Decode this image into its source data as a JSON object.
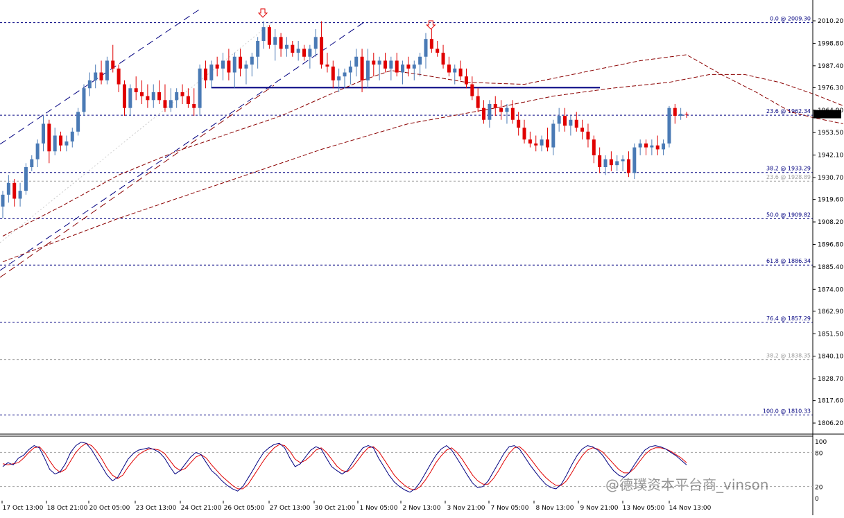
{
  "chart_data": {
    "type": "candlestick",
    "ylim": [
      1802,
      2019
    ],
    "y_ticks": [
      "2010.20",
      "1998.80",
      "1987.40",
      "1976.30",
      "1964.90",
      "1953.50",
      "1942.10",
      "1930.70",
      "1919.60",
      "1908.20",
      "1896.80",
      "1885.40",
      "1874.00",
      "1862.90",
      "1851.50",
      "1840.10",
      "1828.70",
      "1817.60",
      "1806.20"
    ],
    "x_ticks": [
      "17 Oct 13:00",
      "18 Oct 21:00",
      "20 Oct 05:00",
      "23 Oct 13:00",
      "24 Oct 21:00",
      "26 Oct 05:00",
      "27 Oct 13:00",
      "30 Oct 21:00",
      "1 Nov 05:00",
      "2 Nov 13:00",
      "3 Nov 21:00",
      "7 Nov 05:00",
      "8 Nov 13:00",
      "9 Nov 21:00",
      "13 Nov 05:00",
      "14 Nov 13:00"
    ],
    "current_price": "1962.87",
    "bull_color": "#4a7ab5",
    "bear_color": "#e00000",
    "fib_levels": [
      {
        "label": "0.0 @ 2009.30",
        "value": 2009.3,
        "color": "#000080",
        "faded": false
      },
      {
        "label": "23.6 @ 1962.34",
        "value": 1962.34,
        "color": "#000080",
        "faded": false
      },
      {
        "label": "38.2 @ 1933.29",
        "value": 1933.29,
        "color": "#000080",
        "faded": false
      },
      {
        "label": "23.6 @ 1928.89",
        "value": 1928.89,
        "color": "#a0a0a0",
        "faded": true
      },
      {
        "label": "50.0 @ 1909.82",
        "value": 1909.82,
        "color": "#000080",
        "faded": false
      },
      {
        "label": "61.8 @ 1886.34",
        "value": 1886.34,
        "color": "#000080",
        "faded": false
      },
      {
        "label": "76.4 @ 1857.29",
        "value": 1857.29,
        "color": "#000080",
        "faded": false
      },
      {
        "label": "38.2 @ 1838.35",
        "value": 1838.35,
        "color": "#a0a0a0",
        "faded": true
      },
      {
        "label": "100.0 @ 1810.33",
        "value": 1810.33,
        "color": "#000080",
        "faded": false
      }
    ],
    "neckline_value": 1976.3,
    "candles": [
      [
        1916,
        1924,
        1910,
        1922
      ],
      [
        1922,
        1932,
        1918,
        1928
      ],
      [
        1928,
        1930,
        1916,
        1920
      ],
      [
        1920,
        1928,
        1916,
        1924
      ],
      [
        1924,
        1938,
        1922,
        1936
      ],
      [
        1936,
        1942,
        1934,
        1940
      ],
      [
        1940,
        1950,
        1936,
        1948
      ],
      [
        1948,
        1962,
        1944,
        1958
      ],
      [
        1958,
        1960,
        1938,
        1944
      ],
      [
        1944,
        1956,
        1942,
        1952
      ],
      [
        1952,
        1954,
        1944,
        1947
      ],
      [
        1947,
        1952,
        1944,
        1949
      ],
      [
        1949,
        1956,
        1946,
        1954
      ],
      [
        1954,
        1966,
        1952,
        1964
      ],
      [
        1964,
        1978,
        1962,
        1976
      ],
      [
        1976,
        1984,
        1972,
        1980
      ],
      [
        1980,
        1988,
        1976,
        1984
      ],
      [
        1984,
        1990,
        1978,
        1980
      ],
      [
        1980,
        1992,
        1978,
        1990
      ],
      [
        1990,
        1998,
        1984,
        1986
      ],
      [
        1986,
        1988,
        1974,
        1978
      ],
      [
        1978,
        1980,
        1962,
        1966
      ],
      [
        1966,
        1978,
        1962,
        1976
      ],
      [
        1976,
        1982,
        1970,
        1974
      ],
      [
        1974,
        1980,
        1968,
        1972
      ],
      [
        1972,
        1978,
        1966,
        1970
      ],
      [
        1970,
        1978,
        1966,
        1974
      ],
      [
        1974,
        1980,
        1968,
        1970
      ],
      [
        1970,
        1978,
        1964,
        1966
      ],
      [
        1966,
        1976,
        1964,
        1970
      ],
      [
        1970,
        1976,
        1966,
        1974
      ],
      [
        1974,
        1978,
        1968,
        1972
      ],
      [
        1972,
        1976,
        1966,
        1968
      ],
      [
        1968,
        1976,
        1962,
        1966
      ],
      [
        1966,
        1988,
        1962,
        1986
      ],
      [
        1986,
        1990,
        1976,
        1980
      ],
      [
        1980,
        1990,
        1976,
        1988
      ],
      [
        1988,
        1992,
        1982,
        1986
      ],
      [
        1986,
        1994,
        1980,
        1990
      ],
      [
        1990,
        1996,
        1980,
        1984
      ],
      [
        1984,
        1994,
        1976,
        1992
      ],
      [
        1992,
        1996,
        1982,
        1986
      ],
      [
        1986,
        1990,
        1978,
        1988
      ],
      [
        1988,
        1994,
        1982,
        1992
      ],
      [
        1992,
        2002,
        1986,
        2000
      ],
      [
        2000,
        2010,
        1996,
        2007
      ],
      [
        2007,
        2008,
        1996,
        1998
      ],
      [
        1998,
        2006,
        1990,
        2002
      ],
      [
        2002,
        2004,
        1992,
        1996
      ],
      [
        1996,
        2002,
        1992,
        1998
      ],
      [
        1998,
        2000,
        1992,
        1994
      ],
      [
        1994,
        2000,
        1990,
        1996
      ],
      [
        1996,
        1998,
        1990,
        1992
      ],
      [
        1992,
        1998,
        1986,
        1996
      ],
      [
        1996,
        2006,
        1992,
        2002
      ],
      [
        2002,
        2010,
        1986,
        1988
      ],
      [
        1988,
        1994,
        1984,
        1987
      ],
      [
        1987,
        1990,
        1976,
        1980
      ],
      [
        1980,
        1986,
        1974,
        1982
      ],
      [
        1982,
        1986,
        1976,
        1984
      ],
      [
        1984,
        1990,
        1978,
        1987
      ],
      [
        1987,
        1996,
        1982,
        1992
      ],
      [
        1992,
        1996,
        1974,
        1980
      ],
      [
        1980,
        1996,
        1976,
        1990
      ],
      [
        1990,
        1994,
        1982,
        1988
      ],
      [
        1988,
        1992,
        1980,
        1990
      ],
      [
        1990,
        1994,
        1984,
        1986
      ],
      [
        1986,
        1992,
        1980,
        1990
      ],
      [
        1990,
        1994,
        1982,
        1984
      ],
      [
        1984,
        1990,
        1978,
        1988
      ],
      [
        1988,
        1992,
        1982,
        1986
      ],
      [
        1986,
        1990,
        1980,
        1988
      ],
      [
        1988,
        1994,
        1982,
        1992
      ],
      [
        1992,
        2004,
        1986,
        2001
      ],
      [
        2001,
        2006,
        1994,
        1996
      ],
      [
        1996,
        2000,
        1992,
        1994
      ],
      [
        1994,
        1998,
        1986,
        1988
      ],
      [
        1988,
        1992,
        1982,
        1984
      ],
      [
        1984,
        1988,
        1978,
        1986
      ],
      [
        1986,
        1990,
        1980,
        1982
      ],
      [
        1982,
        1986,
        1976,
        1978
      ],
      [
        1978,
        1982,
        1970,
        1972
      ],
      [
        1972,
        1976,
        1964,
        1966
      ],
      [
        1966,
        1970,
        1958,
        1960
      ],
      [
        1960,
        1970,
        1956,
        1968
      ],
      [
        1968,
        1972,
        1962,
        1966
      ],
      [
        1966,
        1970,
        1960,
        1964
      ],
      [
        1964,
        1968,
        1958,
        1966
      ],
      [
        1966,
        1970,
        1958,
        1960
      ],
      [
        1960,
        1964,
        1952,
        1956
      ],
      [
        1956,
        1960,
        1948,
        1950
      ],
      [
        1950,
        1954,
        1946,
        1948
      ],
      [
        1948,
        1952,
        1944,
        1947
      ],
      [
        1947,
        1952,
        1944,
        1950
      ],
      [
        1950,
        1956,
        1944,
        1946
      ],
      [
        1946,
        1960,
        1942,
        1958
      ],
      [
        1958,
        1966,
        1954,
        1962
      ],
      [
        1962,
        1966,
        1954,
        1957
      ],
      [
        1957,
        1962,
        1952,
        1960
      ],
      [
        1960,
        1964,
        1954,
        1956
      ],
      [
        1956,
        1960,
        1950,
        1954
      ],
      [
        1954,
        1958,
        1946,
        1950
      ],
      [
        1950,
        1952,
        1938,
        1942
      ],
      [
        1942,
        1946,
        1933,
        1936
      ],
      [
        1936,
        1942,
        1932,
        1940
      ],
      [
        1940,
        1944,
        1934,
        1937
      ],
      [
        1937,
        1942,
        1934,
        1939
      ],
      [
        1939,
        1942,
        1934,
        1940
      ],
      [
        1940,
        1944,
        1931,
        1933
      ],
      [
        1933,
        1948,
        1930,
        1946
      ],
      [
        1946,
        1950,
        1942,
        1948
      ],
      [
        1948,
        1950,
        1942,
        1946
      ],
      [
        1946,
        1950,
        1942,
        1947
      ],
      [
        1947,
        1952,
        1942,
        1945
      ],
      [
        1945,
        1950,
        1942,
        1948
      ],
      [
        1948,
        1967,
        1946,
        1966
      ],
      [
        1966,
        1968,
        1958,
        1962
      ],
      [
        1962,
        1966,
        1960,
        1963
      ],
      [
        1963,
        1964,
        1961,
        1962.87
      ]
    ],
    "sma_fast": [
      [
        0,
        1901
      ],
      [
        10,
        1916
      ],
      [
        20,
        1932
      ],
      [
        30,
        1944
      ],
      [
        40,
        1954
      ],
      [
        48,
        1962
      ],
      [
        55,
        1971
      ],
      [
        62,
        1980
      ],
      [
        67,
        1985
      ],
      [
        72,
        1983
      ],
      [
        80,
        1979
      ],
      [
        90,
        1978
      ],
      [
        100,
        1984
      ],
      [
        110,
        1990
      ],
      [
        118,
        1993
      ],
      [
        124,
        1983
      ],
      [
        130,
        1974
      ],
      [
        136,
        1964
      ],
      [
        140,
        1961
      ],
      [
        145,
        1958
      ]
    ],
    "sma_slow": [
      [
        0,
        1888
      ],
      [
        20,
        1910
      ],
      [
        40,
        1930
      ],
      [
        55,
        1945
      ],
      [
        70,
        1958
      ],
      [
        85,
        1966
      ],
      [
        95,
        1972
      ],
      [
        105,
        1976
      ],
      [
        115,
        1979
      ],
      [
        122,
        1983
      ],
      [
        128,
        1983
      ],
      [
        134,
        1979
      ],
      [
        140,
        1973
      ],
      [
        146,
        1966
      ],
      [
        150,
        1961
      ]
    ],
    "oscillator": {
      "ticks": [
        "100",
        "80",
        "20",
        "0"
      ],
      "main": [
        55,
        62,
        58,
        70,
        75,
        85,
        92,
        88,
        70,
        50,
        42,
        46,
        60,
        80,
        92,
        98,
        96,
        85,
        70,
        55,
        40,
        30,
        36,
        52,
        68,
        78,
        84,
        86,
        88,
        85,
        80,
        70,
        55,
        42,
        48,
        60,
        72,
        80,
        76,
        62,
        48,
        40,
        30,
        22,
        16,
        12,
        20,
        35,
        50,
        66,
        80,
        88,
        94,
        96,
        88,
        70,
        55,
        60,
        72,
        84,
        90,
        86,
        70,
        55,
        48,
        42,
        48,
        62,
        76,
        88,
        92,
        88,
        70,
        55,
        40,
        28,
        20,
        14,
        10,
        16,
        28,
        44,
        60,
        75,
        86,
        92,
        84,
        70,
        55,
        40,
        26,
        18,
        20,
        30,
        46,
        62,
        78,
        90,
        92,
        86,
        72,
        58,
        46,
        34,
        24,
        18,
        16,
        24,
        40,
        58,
        74,
        86,
        92,
        90,
        84,
        74,
        60,
        48,
        40,
        36,
        44,
        58,
        72,
        84,
        90,
        92,
        90,
        86,
        80,
        74,
        66,
        58
      ],
      "signal": [
        60,
        58,
        60,
        62,
        70,
        80,
        88,
        90,
        80,
        65,
        52,
        45,
        50,
        65,
        80,
        90,
        96,
        92,
        82,
        68,
        52,
        40,
        34,
        40,
        54,
        66,
        76,
        82,
        86,
        86,
        84,
        78,
        66,
        54,
        48,
        52,
        62,
        72,
        76,
        70,
        58,
        48,
        38,
        30,
        22,
        16,
        16,
        24,
        38,
        52,
        66,
        78,
        88,
        94,
        92,
        82,
        68,
        62,
        66,
        74,
        84,
        88,
        80,
        68,
        56,
        48,
        46,
        54,
        66,
        78,
        88,
        90,
        82,
        68,
        54,
        40,
        30,
        22,
        16,
        14,
        20,
        32,
        46,
        62,
        74,
        84,
        88,
        80,
        68,
        54,
        40,
        30,
        24,
        24,
        34,
        48,
        64,
        78,
        88,
        90,
        82,
        70,
        58,
        46,
        36,
        28,
        22,
        22,
        30,
        44,
        60,
        74,
        84,
        88,
        86,
        80,
        70,
        60,
        50,
        44,
        44,
        52,
        64,
        76,
        84,
        88,
        88,
        86,
        82,
        76,
        70,
        62
      ]
    }
  },
  "watermark": "@德璞资本平台商_vinson"
}
